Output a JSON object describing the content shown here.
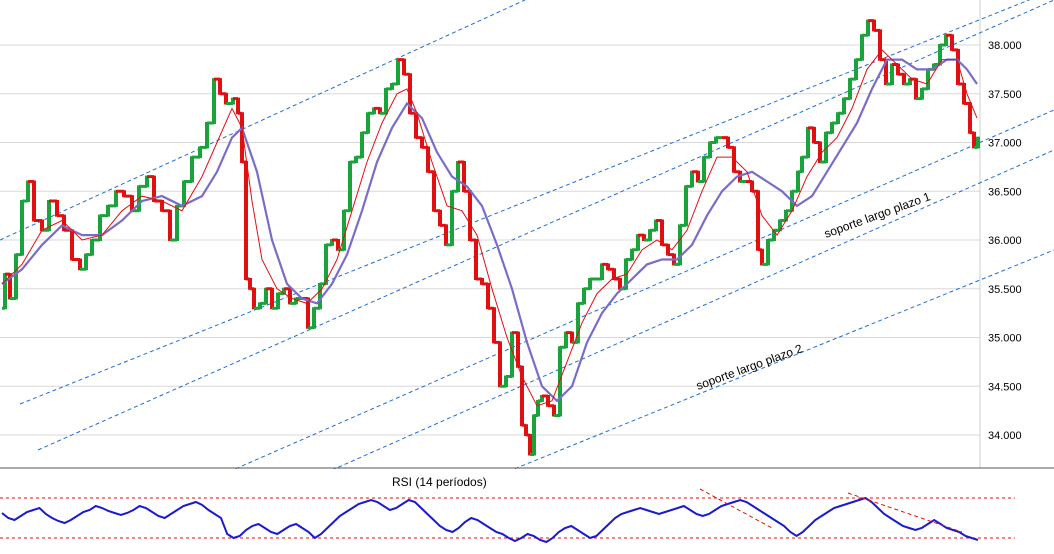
{
  "chart_data": {
    "type": "line",
    "subtype": "candlestick price chart with moving averages and RSI panel",
    "y_ticks": [
      "38.000",
      "37.500",
      "37.000",
      "36.500",
      "36.000",
      "35.500",
      "35.000",
      "34.500",
      "34.000"
    ],
    "y_tick_values": [
      38000,
      37500,
      37000,
      36500,
      36000,
      35500,
      35000,
      34500,
      34000
    ],
    "ylim": [
      33700,
      38400
    ],
    "grid": true,
    "colors": {
      "up_candle": "#1aa33a",
      "down_candle": "#e01010",
      "ma_fast": "#e01010",
      "ma_slow": "#7a6cc8",
      "channel": "#1f6fd1",
      "rsi": "#1a1ad0",
      "rsi_bounds": "#e01010",
      "rsi_trend": "#e01010"
    },
    "price_path": [
      [
        0,
        35300
      ],
      [
        3,
        35650
      ],
      [
        8,
        35400
      ],
      [
        14,
        35850
      ],
      [
        20,
        36400
      ],
      [
        26,
        36600
      ],
      [
        32,
        36200
      ],
      [
        40,
        36100
      ],
      [
        47,
        36400
      ],
      [
        55,
        36250
      ],
      [
        62,
        36100
      ],
      [
        70,
        35800
      ],
      [
        78,
        35700
      ],
      [
        84,
        35850
      ],
      [
        90,
        36000
      ],
      [
        98,
        36250
      ],
      [
        106,
        36350
      ],
      [
        114,
        36500
      ],
      [
        122,
        36450
      ],
      [
        130,
        36300
      ],
      [
        137,
        36550
      ],
      [
        145,
        36650
      ],
      [
        152,
        36400
      ],
      [
        160,
        36300
      ],
      [
        168,
        36000
      ],
      [
        175,
        36350
      ],
      [
        182,
        36600
      ],
      [
        190,
        36850
      ],
      [
        198,
        36950
      ],
      [
        205,
        37200
      ],
      [
        212,
        37650
      ],
      [
        218,
        37500
      ],
      [
        224,
        37400
      ],
      [
        231,
        37450
      ],
      [
        236,
        37300
      ],
      [
        240,
        36800
      ],
      [
        244,
        35600
      ],
      [
        248,
        35500
      ],
      [
        252,
        35300
      ],
      [
        258,
        35350
      ],
      [
        264,
        35500
      ],
      [
        270,
        35300
      ],
      [
        276,
        35450
      ],
      [
        282,
        35500
      ],
      [
        288,
        35350
      ],
      [
        294,
        35400
      ],
      [
        300,
        35400
      ],
      [
        306,
        35100
      ],
      [
        312,
        35300
      ],
      [
        318,
        35550
      ],
      [
        324,
        35950
      ],
      [
        330,
        36000
      ],
      [
        336,
        35900
      ],
      [
        342,
        36300
      ],
      [
        348,
        36800
      ],
      [
        354,
        36850
      ],
      [
        360,
        37100
      ],
      [
        366,
        37300
      ],
      [
        372,
        37350
      ],
      [
        378,
        37300
      ],
      [
        384,
        37550
      ],
      [
        390,
        37600
      ],
      [
        396,
        37850
      ],
      [
        402,
        37700
      ],
      [
        408,
        37300
      ],
      [
        414,
        37050
      ],
      [
        420,
        36950
      ],
      [
        426,
        36700
      ],
      [
        432,
        36300
      ],
      [
        438,
        36150
      ],
      [
        444,
        35950
      ],
      [
        450,
        36500
      ],
      [
        456,
        36800
      ],
      [
        462,
        36500
      ],
      [
        468,
        36000
      ],
      [
        474,
        35600
      ],
      [
        480,
        35550
      ],
      [
        486,
        35300
      ],
      [
        492,
        34950
      ],
      [
        498,
        34500
      ],
      [
        504,
        34600
      ],
      [
        510,
        35050
      ],
      [
        516,
        34700
      ],
      [
        520,
        34100
      ],
      [
        524,
        34000
      ],
      [
        528,
        33800
      ],
      [
        532,
        34200
      ],
      [
        536,
        34350
      ],
      [
        540,
        34400
      ],
      [
        546,
        34300
      ],
      [
        552,
        34200
      ],
      [
        558,
        34900
      ],
      [
        564,
        35050
      ],
      [
        570,
        34950
      ],
      [
        576,
        35350
      ],
      [
        582,
        35500
      ],
      [
        588,
        35600
      ],
      [
        594,
        35600
      ],
      [
        600,
        35750
      ],
      [
        606,
        35700
      ],
      [
        612,
        35600
      ],
      [
        618,
        35500
      ],
      [
        624,
        35800
      ],
      [
        630,
        35900
      ],
      [
        636,
        36050
      ],
      [
        642,
        36000
      ],
      [
        648,
        36100
      ],
      [
        654,
        36200
      ],
      [
        660,
        35950
      ],
      [
        666,
        35850
      ],
      [
        672,
        35750
      ],
      [
        678,
        36150
      ],
      [
        684,
        36550
      ],
      [
        690,
        36700
      ],
      [
        696,
        36600
      ],
      [
        702,
        36850
      ],
      [
        708,
        37000
      ],
      [
        714,
        37050
      ],
      [
        720,
        37050
      ],
      [
        726,
        36950
      ],
      [
        732,
        36700
      ],
      [
        738,
        36600
      ],
      [
        744,
        36600
      ],
      [
        750,
        36500
      ],
      [
        756,
        35900
      ],
      [
        760,
        35750
      ],
      [
        766,
        36000
      ],
      [
        772,
        36100
      ],
      [
        778,
        36200
      ],
      [
        784,
        36300
      ],
      [
        790,
        36500
      ],
      [
        796,
        36700
      ],
      [
        800,
        36850
      ],
      [
        806,
        37150
      ],
      [
        812,
        37000
      ],
      [
        818,
        36800
      ],
      [
        824,
        37100
      ],
      [
        830,
        37200
      ],
      [
        836,
        37300
      ],
      [
        842,
        37450
      ],
      [
        848,
        37650
      ],
      [
        854,
        37850
      ],
      [
        860,
        38100
      ],
      [
        866,
        38250
      ],
      [
        872,
        38150
      ],
      [
        878,
        37850
      ],
      [
        884,
        37600
      ],
      [
        890,
        37800
      ],
      [
        896,
        37700
      ],
      [
        902,
        37600
      ],
      [
        908,
        37650
      ],
      [
        914,
        37450
      ],
      [
        920,
        37550
      ],
      [
        926,
        37750
      ],
      [
        932,
        37800
      ],
      [
        938,
        38000
      ],
      [
        944,
        38100
      ],
      [
        950,
        37950
      ],
      [
        956,
        37600
      ],
      [
        962,
        37400
      ],
      [
        968,
        37100
      ],
      [
        972,
        36950
      ],
      [
        976,
        37050
      ]
    ],
    "ma_fast_path": [
      [
        0,
        35550
      ],
      [
        20,
        35750
      ],
      [
        40,
        36100
      ],
      [
        60,
        36200
      ],
      [
        80,
        36000
      ],
      [
        100,
        36050
      ],
      [
        120,
        36300
      ],
      [
        140,
        36450
      ],
      [
        160,
        36400
      ],
      [
        180,
        36300
      ],
      [
        200,
        36650
      ],
      [
        215,
        37000
      ],
      [
        230,
        37350
      ],
      [
        240,
        37150
      ],
      [
        250,
        36400
      ],
      [
        260,
        35800
      ],
      [
        275,
        35500
      ],
      [
        290,
        35400
      ],
      [
        305,
        35350
      ],
      [
        320,
        35500
      ],
      [
        335,
        35800
      ],
      [
        350,
        36300
      ],
      [
        365,
        36800
      ],
      [
        380,
        37200
      ],
      [
        395,
        37500
      ],
      [
        405,
        37550
      ],
      [
        415,
        37300
      ],
      [
        430,
        36800
      ],
      [
        445,
        36350
      ],
      [
        460,
        36300
      ],
      [
        475,
        36050
      ],
      [
        490,
        35500
      ],
      [
        505,
        35000
      ],
      [
        520,
        34600
      ],
      [
        535,
        34300
      ],
      [
        550,
        34350
      ],
      [
        565,
        34750
      ],
      [
        580,
        35150
      ],
      [
        595,
        35450
      ],
      [
        610,
        35600
      ],
      [
        625,
        35650
      ],
      [
        640,
        35900
      ],
      [
        655,
        36000
      ],
      [
        670,
        35900
      ],
      [
        685,
        36100
      ],
      [
        700,
        36500
      ],
      [
        715,
        36850
      ],
      [
        730,
        36850
      ],
      [
        745,
        36700
      ],
      [
        760,
        36250
      ],
      [
        775,
        36050
      ],
      [
        790,
        36300
      ],
      [
        805,
        36650
      ],
      [
        820,
        36900
      ],
      [
        835,
        37050
      ],
      [
        850,
        37350
      ],
      [
        865,
        37750
      ],
      [
        880,
        37950
      ],
      [
        895,
        37800
      ],
      [
        910,
        37650
      ],
      [
        925,
        37600
      ],
      [
        940,
        37850
      ],
      [
        955,
        37850
      ],
      [
        965,
        37500
      ],
      [
        975,
        37250
      ]
    ],
    "ma_slow_path": [
      [
        0,
        35550
      ],
      [
        20,
        35700
      ],
      [
        40,
        35950
      ],
      [
        60,
        36150
      ],
      [
        80,
        36050
      ],
      [
        100,
        36050
      ],
      [
        120,
        36200
      ],
      [
        140,
        36400
      ],
      [
        160,
        36450
      ],
      [
        180,
        36350
      ],
      [
        200,
        36450
      ],
      [
        215,
        36700
      ],
      [
        230,
        37050
      ],
      [
        240,
        37150
      ],
      [
        255,
        36700
      ],
      [
        270,
        36000
      ],
      [
        285,
        35550
      ],
      [
        300,
        35400
      ],
      [
        315,
        35350
      ],
      [
        330,
        35550
      ],
      [
        345,
        35850
      ],
      [
        360,
        36300
      ],
      [
        375,
        36800
      ],
      [
        390,
        37150
      ],
      [
        405,
        37400
      ],
      [
        420,
        37250
      ],
      [
        435,
        36900
      ],
      [
        450,
        36650
      ],
      [
        465,
        36550
      ],
      [
        480,
        36350
      ],
      [
        495,
        35950
      ],
      [
        510,
        35500
      ],
      [
        525,
        34950
      ],
      [
        540,
        34500
      ],
      [
        555,
        34350
      ],
      [
        570,
        34500
      ],
      [
        585,
        34950
      ],
      [
        600,
        35250
      ],
      [
        615,
        35450
      ],
      [
        630,
        35600
      ],
      [
        645,
        35750
      ],
      [
        660,
        35800
      ],
      [
        675,
        35800
      ],
      [
        690,
        35950
      ],
      [
        705,
        36250
      ],
      [
        720,
        36500
      ],
      [
        735,
        36650
      ],
      [
        750,
        36700
      ],
      [
        765,
        36600
      ],
      [
        780,
        36500
      ],
      [
        795,
        36350
      ],
      [
        810,
        36450
      ],
      [
        825,
        36700
      ],
      [
        840,
        36950
      ],
      [
        855,
        37200
      ],
      [
        870,
        37550
      ],
      [
        885,
        37850
      ],
      [
        900,
        37850
      ],
      [
        915,
        37750
      ],
      [
        930,
        37750
      ],
      [
        945,
        37850
      ],
      [
        955,
        37850
      ],
      [
        965,
        37750
      ],
      [
        975,
        37600
      ]
    ],
    "annotations": [
      {
        "text": "soporte largo plazo 1"
      },
      {
        "text": "soporte largo plazo 2"
      }
    ],
    "rsi": {
      "label": "RSI (14 períodos)",
      "upper_bound": 70,
      "lower_bound": 30,
      "values": [
        55,
        50,
        48,
        52,
        56,
        58,
        60,
        54,
        50,
        47,
        45,
        48,
        52,
        56,
        58,
        62,
        60,
        57,
        55,
        53,
        55,
        58,
        62,
        60,
        56,
        52,
        50,
        54,
        58,
        62,
        64,
        66,
        63,
        58,
        54,
        50,
        34,
        30,
        32,
        38,
        42,
        44,
        40,
        36,
        34,
        38,
        42,
        44,
        40,
        36,
        30,
        34,
        40,
        46,
        52,
        56,
        60,
        64,
        66,
        68,
        66,
        62,
        58,
        60,
        64,
        68,
        66,
        60,
        54,
        48,
        42,
        38,
        36,
        40,
        46,
        50,
        48,
        44,
        40,
        36,
        34,
        30,
        27,
        30,
        34,
        32,
        28,
        26,
        30,
        36,
        40,
        42,
        38,
        34,
        30,
        32,
        38,
        44,
        50,
        54,
        56,
        58,
        60,
        58,
        56,
        54,
        56,
        58,
        60,
        62,
        58,
        54,
        52,
        54,
        58,
        62,
        64,
        66,
        68,
        66,
        62,
        58,
        54,
        50,
        46,
        42,
        36,
        32,
        36,
        42,
        48,
        52,
        56,
        60,
        62,
        64,
        66,
        68,
        70,
        66,
        60,
        54,
        50,
        46,
        42,
        40,
        38,
        40,
        44,
        48,
        44,
        40,
        38,
        36,
        32,
        30,
        28
      ]
    },
    "rsi_trendlines_count": 2
  }
}
